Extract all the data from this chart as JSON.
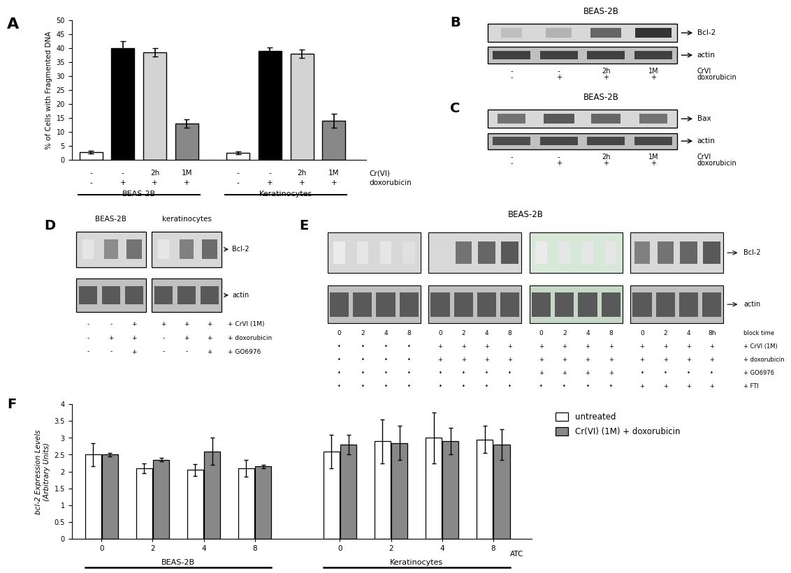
{
  "panel_A": {
    "ylabel": "% of Cells with Fragmented DNA",
    "ylim": [
      0,
      50
    ],
    "yticks": [
      0,
      5,
      10,
      15,
      20,
      25,
      30,
      35,
      40,
      45,
      50
    ],
    "beas_vals": [
      2.7,
      40.0,
      38.5,
      13.0
    ],
    "beas_errs": [
      0.5,
      2.5,
      1.5,
      1.5
    ],
    "beas_colors": [
      "white",
      "black",
      "lightgray",
      "#888888"
    ],
    "kerat_vals": [
      2.5,
      39.0,
      38.0,
      14.0
    ],
    "kerat_errs": [
      0.4,
      1.3,
      1.5,
      2.5
    ],
    "kerat_colors": [
      "white",
      "black",
      "lightgray",
      "#888888"
    ],
    "crvi_labels": [
      "-",
      "-",
      "2h",
      "1M",
      "-",
      "-",
      "2h",
      "1M"
    ],
    "dox_labels": [
      "-",
      "+",
      "+",
      "+",
      "-",
      "+",
      "+",
      "+"
    ],
    "group_labels": [
      "BEAS-2B",
      "Keratinocytes"
    ]
  },
  "panel_F": {
    "ylabel": "bcl-2 Expression Levels\n(Arbitrary Units)",
    "ylim": [
      0,
      4
    ],
    "yticks": [
      0,
      0.5,
      1,
      1.5,
      2,
      2.5,
      3,
      3.5,
      4
    ],
    "beas_unt_vals": [
      2.5,
      2.1,
      2.05,
      2.1
    ],
    "beas_unt_errs": [
      0.35,
      0.15,
      0.18,
      0.25
    ],
    "beas_trt_vals": [
      2.5,
      2.35,
      2.6,
      2.15
    ],
    "beas_trt_errs": [
      0.05,
      0.05,
      0.4,
      0.05
    ],
    "kerat_unt_vals": [
      2.6,
      2.9,
      3.0,
      2.95
    ],
    "kerat_unt_errs": [
      0.5,
      0.65,
      0.75,
      0.4
    ],
    "kerat_trt_vals": [
      2.8,
      2.85,
      2.9,
      2.8
    ],
    "kerat_trt_errs": [
      0.3,
      0.5,
      0.4,
      0.45
    ],
    "group_labels": [
      "BEAS-2B",
      "Keratinocytes"
    ]
  }
}
